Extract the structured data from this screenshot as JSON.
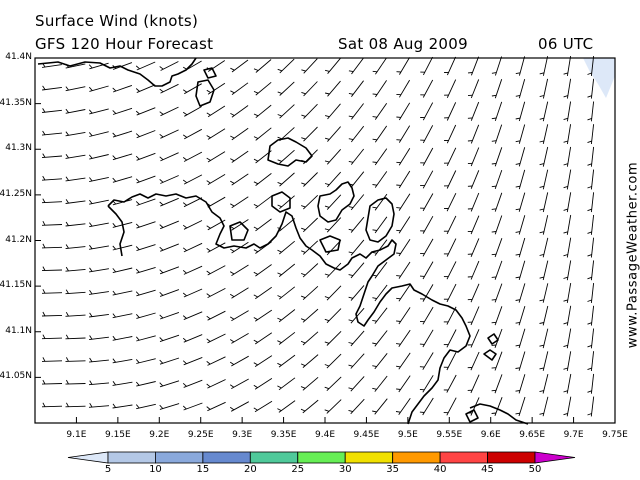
{
  "header": {
    "title": "Surface Wind (knots)",
    "subtitle": "GFS 120 Hour Forecast",
    "date": "Sat 08 Aug 2009",
    "time": "06 UTC"
  },
  "axes": {
    "lat_labels": [
      "41.4N",
      "41.35N",
      "41.3N",
      "41.25N",
      "41.2N",
      "41.15N",
      "41.1N",
      "41.05N"
    ],
    "lat_values": [
      41.4,
      41.35,
      41.3,
      41.25,
      41.2,
      41.15,
      41.1,
      41.05
    ],
    "lon_labels": [
      "9.1E",
      "9.15E",
      "9.2E",
      "9.25E",
      "9.3E",
      "9.35E",
      "9.4E",
      "9.45E",
      "9.5E",
      "9.55E",
      "9.6E",
      "9.65E",
      "9.7E",
      "9.75E"
    ],
    "lon_values": [
      9.1,
      9.15,
      9.2,
      9.25,
      9.3,
      9.35,
      9.4,
      9.45,
      9.5,
      9.55,
      9.6,
      9.65,
      9.7,
      9.75
    ],
    "lat_range": [
      41.0,
      41.4
    ],
    "lon_range": [
      9.05,
      9.75
    ]
  },
  "colorbar": {
    "labels": [
      "5",
      "10",
      "15",
      "20",
      "25",
      "30",
      "35",
      "40",
      "45",
      "50"
    ],
    "colors": [
      "#dde8f8",
      "#b4c8e6",
      "#8aa9dc",
      "#6689cf",
      "#4fc99a",
      "#66ee55",
      "#f0e000",
      "#ff9900",
      "#ff4444",
      "#cc0000",
      "#cc00cc"
    ]
  },
  "credit": "www.PassageWeather.com",
  "wind": {
    "units": "knots",
    "max_label_speed": 5,
    "calm_area_color": "#dde8f8"
  }
}
